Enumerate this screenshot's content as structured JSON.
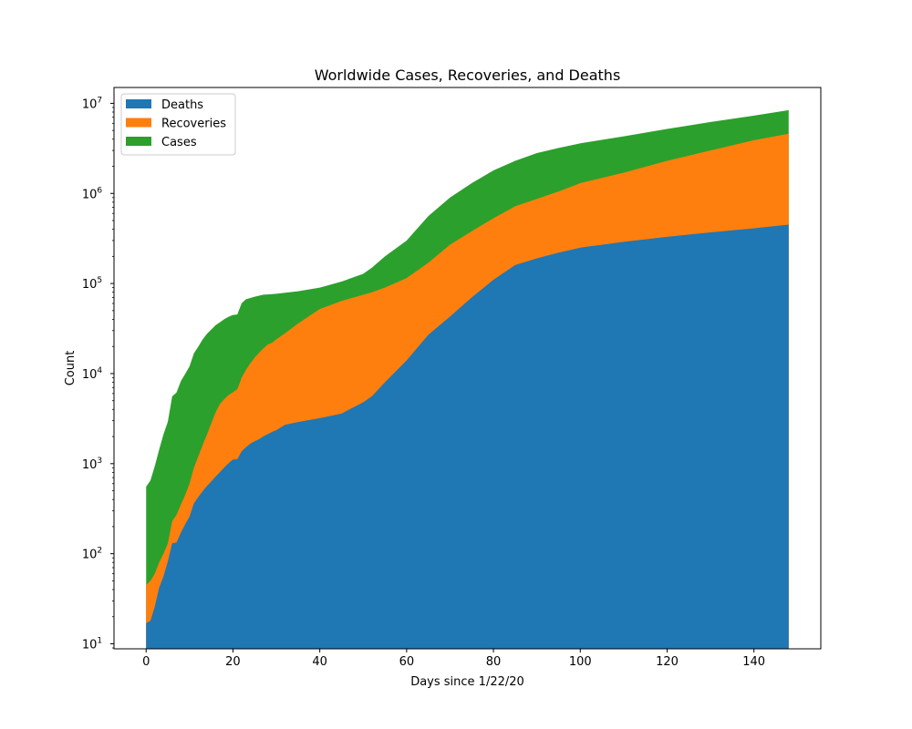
{
  "chart_data": {
    "type": "area",
    "stacked": false,
    "title": "Worldwide Cases, Recoveries, and Deaths",
    "xlabel": "Days since 1/22/20",
    "ylabel": "Count",
    "yscale": "log",
    "xlim": [
      -7.4,
      155.4
    ],
    "ylim": [
      8.8,
      15000000
    ],
    "xticks": [
      0,
      20,
      40,
      60,
      80,
      100,
      120,
      140
    ],
    "yticks": [
      10,
      100,
      1000,
      10000,
      100000,
      1000000,
      10000000
    ],
    "ytick_labels": [
      {
        "base": "10",
        "exp": "1"
      },
      {
        "base": "10",
        "exp": "2"
      },
      {
        "base": "10",
        "exp": "3"
      },
      {
        "base": "10",
        "exp": "4"
      },
      {
        "base": "10",
        "exp": "5"
      },
      {
        "base": "10",
        "exp": "6"
      },
      {
        "base": "10",
        "exp": "7"
      }
    ],
    "grid": false,
    "legend_position": "top-left",
    "x": [
      0,
      1,
      2,
      3,
      4,
      5,
      6,
      7,
      8,
      9,
      10,
      11,
      12,
      13,
      14,
      15,
      16,
      17,
      18,
      19,
      20,
      21,
      22,
      23,
      24,
      25,
      26,
      27,
      28,
      29,
      30,
      32,
      35,
      40,
      45,
      50,
      52,
      55,
      60,
      65,
      70,
      75,
      80,
      85,
      90,
      95,
      100,
      110,
      120,
      130,
      140,
      148
    ],
    "series": [
      {
        "name": "Deaths",
        "color": "#1f77b4",
        "values": [
          17,
          18,
          26,
          42,
          56,
          82,
          131,
          133,
          171,
          213,
          259,
          362,
          426,
          492,
          564,
          634,
          719,
          806,
          906,
          1013,
          1113,
          1118,
          1371,
          1523,
          1666,
          1770,
          1868,
          2007,
          2122,
          2247,
          2360,
          2700,
          2900,
          3200,
          3600,
          4800,
          5600,
          8000,
          14000,
          27000,
          43000,
          70000,
          110000,
          160000,
          190000,
          220000,
          250000,
          290000,
          330000,
          370000,
          410000,
          450000
        ]
      },
      {
        "name": "Recoveries",
        "color": "#ff7f0e",
        "values": [
          45,
          50,
          60,
          80,
          100,
          130,
          230,
          270,
          350,
          450,
          600,
          900,
          1200,
          1600,
          2100,
          2800,
          3700,
          4600,
          5200,
          5800,
          6200,
          6700,
          9000,
          11000,
          13000,
          15000,
          17000,
          19000,
          21000,
          22000,
          24000,
          28000,
          36000,
          52000,
          64000,
          75000,
          80000,
          90000,
          115000,
          170000,
          270000,
          380000,
          530000,
          720000,
          870000,
          1050000,
          1300000,
          1700000,
          2300000,
          3000000,
          3900000,
          4600000
        ]
      },
      {
        "name": "Cases",
        "color": "#2ca02c",
        "values": [
          555,
          653,
          941,
          1434,
          2118,
          2927,
          5578,
          6166,
          8234,
          9927,
          12038,
          16787,
          19881,
          23892,
          27635,
          30817,
          34391,
          37120,
          40150,
          42762,
          44802,
          45221,
          60368,
          66885,
          69030,
          71224,
          73258,
          75136,
          75639,
          76197,
          77000,
          79000,
          82000,
          90000,
          105000,
          128000,
          150000,
          200000,
          300000,
          560000,
          900000,
          1300000,
          1800000,
          2300000,
          2800000,
          3200000,
          3600000,
          4300000,
          5200000,
          6200000,
          7300000,
          8400000
        ]
      }
    ]
  }
}
